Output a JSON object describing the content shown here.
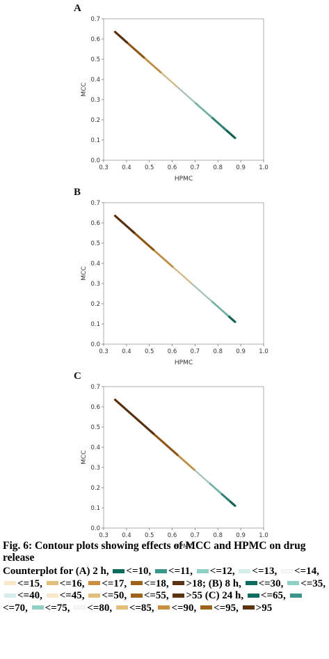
{
  "chart_data": [
    {
      "type": "contour",
      "panel_label": "A",
      "xlabel": "HPMC",
      "ylabel": "MCC",
      "xlim": [
        0.3,
        1.0
      ],
      "ylim": [
        0.0,
        0.7
      ],
      "xticks": [
        "0.3",
        "0.4",
        "0.5",
        "0.6",
        "0.7",
        "0.8",
        "0.9",
        "1.0"
      ],
      "yticks": [
        "0.0",
        "0.1",
        "0.2",
        "0.3",
        "0.4",
        "0.5",
        "0.6",
        "0.7"
      ],
      "line": {
        "x": [
          0.35,
          0.875
        ],
        "y": [
          0.635,
          0.11
        ]
      },
      "bands": [
        {
          "color": "#0f6b5d",
          "from": 0.9,
          "to": 1.0
        },
        {
          "color": "#3a958a",
          "from": 0.78,
          "to": 0.92
        },
        {
          "color": "#8fd0c6",
          "from": 0.62,
          "to": 0.8
        },
        {
          "color": "#cfe9e6",
          "from": 0.48,
          "to": 0.66
        },
        {
          "color": "#f0dfb8",
          "from": 0.34,
          "to": 0.52
        },
        {
          "color": "#d7a860",
          "from": 0.2,
          "to": 0.38
        },
        {
          "color": "#9d621c",
          "from": 0.08,
          "to": 0.24
        },
        {
          "color": "#5b3310",
          "from": 0.0,
          "to": 0.1
        }
      ]
    },
    {
      "type": "contour",
      "panel_label": "B",
      "xlabel": "HPMC",
      "ylabel": "MCC",
      "xlim": [
        0.3,
        1.0
      ],
      "ylim": [
        0.0,
        0.7
      ],
      "xticks": [
        "0.3",
        "0.4",
        "0.5",
        "0.6",
        "0.7",
        "0.8",
        "0.9",
        "1.0"
      ],
      "yticks": [
        "0.0",
        "0.1",
        "0.2",
        "0.3",
        "0.4",
        "0.5",
        "0.6",
        "0.7"
      ],
      "line": {
        "x": [
          0.35,
          0.875
        ],
        "y": [
          0.635,
          0.11
        ]
      },
      "bands": [
        {
          "color": "#0f6b5d",
          "from": 0.92,
          "to": 1.0
        },
        {
          "color": "#8fd0c6",
          "from": 0.78,
          "to": 0.94
        },
        {
          "color": "#cfe9e6",
          "from": 0.62,
          "to": 0.8
        },
        {
          "color": "#f0dfb8",
          "from": 0.46,
          "to": 0.64
        },
        {
          "color": "#d7a860",
          "from": 0.3,
          "to": 0.48
        },
        {
          "color": "#9d621c",
          "from": 0.14,
          "to": 0.32
        },
        {
          "color": "#5b3310",
          "from": 0.0,
          "to": 0.16
        }
      ]
    },
    {
      "type": "contour",
      "panel_label": "C",
      "xlabel": "HPMC",
      "ylabel": "MCC",
      "xlim": [
        0.3,
        1.0
      ],
      "ylim": [
        0.0,
        0.7
      ],
      "xticks": [
        "0.3",
        "0.4",
        "0.5",
        "0.6",
        "0.7",
        "0.8",
        "0.9",
        "1.0"
      ],
      "yticks": [
        "0.0",
        "0.1",
        "0.2",
        "0.3",
        "0.4",
        "0.5",
        "0.6",
        "0.7"
      ],
      "line": {
        "x": [
          0.35,
          0.875
        ],
        "y": [
          0.635,
          0.11
        ]
      },
      "bands": [
        {
          "color": "#0f6b5d",
          "from": 0.93,
          "to": 1.0
        },
        {
          "color": "#3a958a",
          "from": 0.86,
          "to": 0.95
        },
        {
          "color": "#8fd0c6",
          "from": 0.76,
          "to": 0.88
        },
        {
          "color": "#cfe9e6",
          "from": 0.64,
          "to": 0.78
        },
        {
          "color": "#d7a860",
          "from": 0.5,
          "to": 0.66
        },
        {
          "color": "#9d621c",
          "from": 0.3,
          "to": 0.52
        },
        {
          "color": "#5b3310",
          "from": 0.0,
          "to": 0.32
        }
      ]
    }
  ],
  "caption": {
    "title": "Fig. 6: Contour plots showing effects of MCC and HPMC on drug release",
    "legend": [
      {
        "text": "Counterplot for (A) 2 h,"
      },
      {
        "color": "#0f6b5d",
        "text": "<=10,"
      },
      {
        "color": "#3a958a",
        "text": "<=11,"
      },
      {
        "color": "#8fd0c6",
        "text": "<=12,"
      },
      {
        "color": "#d4ecea",
        "text": "<=13,"
      },
      {
        "color": "#f7f7f7",
        "text": "<=14,"
      },
      {
        "color": "#f6e8c8",
        "text": "<=15,"
      },
      {
        "color": "#e2c07c",
        "text": "<=16,"
      },
      {
        "color": "#c98f3e",
        "text": "<=17,"
      },
      {
        "color": "#9d621c",
        "text": "<=18,"
      },
      {
        "color": "#5b3310",
        "text": ">18; (B) 8 h,"
      },
      {
        "color": "#0f6b5d",
        "text": "<=30,"
      },
      {
        "color": "#8fd0c6",
        "text": "<=35,"
      },
      {
        "color": "#d4ecea",
        "text": "<=40,"
      },
      {
        "color": "#f6e8c8",
        "text": "<=45,"
      },
      {
        "color": "#e2c07c",
        "text": "<=50,"
      },
      {
        "color": "#9d621c",
        "text": "<=55,"
      },
      {
        "color": "#5b3310",
        "text": ">55 (C) 24 h,"
      },
      {
        "color": "#0f6b5d",
        "text": "<=65,"
      },
      {
        "color": "#3a958a",
        "text": "<=70,"
      },
      {
        "color": "#8fd0c6",
        "text": "<=75,"
      },
      {
        "color": "#f7f7f7",
        "text": "<=80,"
      },
      {
        "color": "#e2c07c",
        "text": "<=85,"
      },
      {
        "color": "#c98f3e",
        "text": "<=90,"
      },
      {
        "color": "#9d621c",
        "text": "<=95,"
      },
      {
        "color": "#5b3310",
        "text": ">95"
      }
    ]
  }
}
